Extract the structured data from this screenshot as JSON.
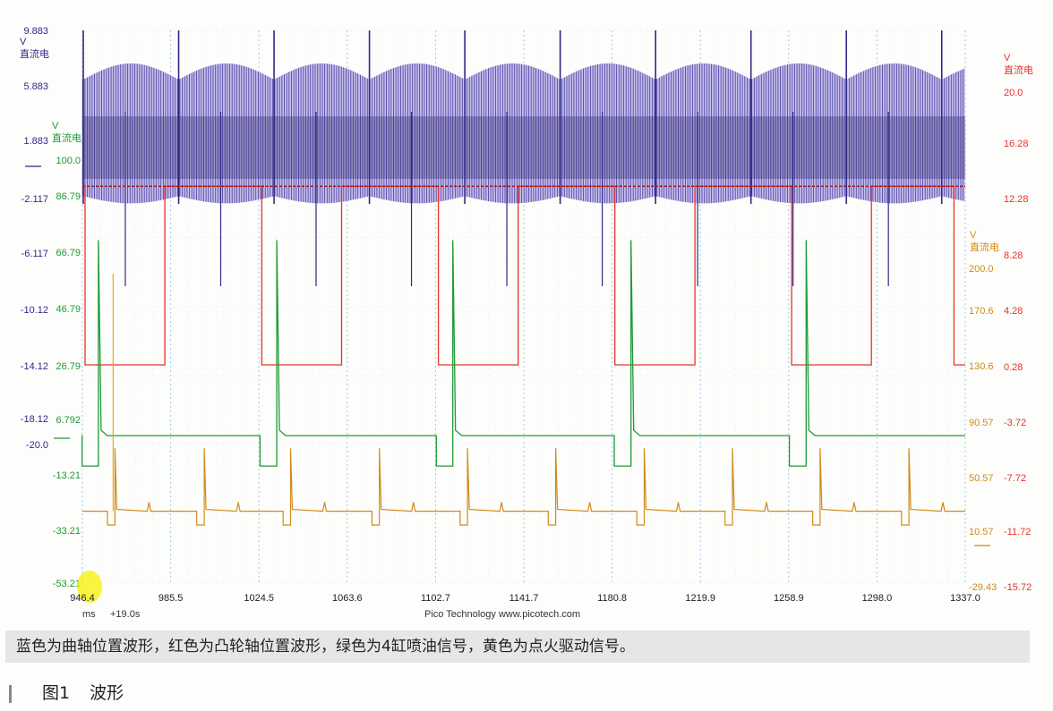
{
  "chart_data": {
    "type": "line",
    "x": {
      "unit": "ms",
      "offset_label": "+19.0s",
      "ticks": [
        "946.4",
        "985.5",
        "1024.5",
        "1063.6",
        "1102.7",
        "1141.7",
        "1180.8",
        "1219.9",
        "1258.9",
        "1298.0",
        "1337.0"
      ],
      "range": [
        946.4,
        1337.0
      ]
    },
    "footer": "Pico Technology  www.picotech.com",
    "axes": [
      {
        "id": "blue",
        "color": "#2e2a8c",
        "unit": "V",
        "unit_label": "直流电",
        "range": [
          -20.0,
          9.883
        ],
        "ticks": [
          "9.883",
          "5.883",
          "1.883",
          "-2.117",
          "-6.117",
          "-10.12",
          "-14.12",
          "-18.12",
          "-20.0"
        ]
      },
      {
        "id": "green",
        "color": "#1e9a35",
        "unit": "V",
        "unit_label": "直流电",
        "range": [
          -53.21,
          100.0
        ],
        "ticks": [
          "100.0",
          "86.79",
          "66.79",
          "46.79",
          "26.79",
          "6.792",
          "-13.21",
          "-33.21",
          "-53.21"
        ]
      },
      {
        "id": "orange",
        "color": "#d08a18",
        "unit": "V",
        "unit_label": "直流电",
        "range": [
          -29.43,
          200.0
        ],
        "ticks": [
          "200.0",
          "170.6",
          "130.6",
          "90.57",
          "50.57",
          "10.57",
          "-29.43"
        ]
      },
      {
        "id": "red",
        "color": "#e8322a",
        "unit": "V",
        "unit_label": "直流电",
        "range": [
          -15.72,
          23.8
        ],
        "ticks": [
          "20.0",
          "16.28",
          "12.28",
          "8.28",
          "4.28",
          "0.28",
          "-3.72",
          "-7.72",
          "-11.72",
          "-15.72"
        ]
      }
    ],
    "series": [
      {
        "axis": "blue",
        "kind": "crank",
        "period_ms": 42.2,
        "spike_times": [
          946.8,
          989.0,
          1031.2,
          1073.4,
          1115.6,
          1157.8,
          1200.0,
          1242.2,
          1284.4,
          1326.6
        ],
        "envelope": [
          -2.6,
          7.5
        ]
      },
      {
        "axis": "red",
        "kind": "cam",
        "high": 13.2,
        "low": 0.3,
        "fall_times": [
          947.6,
          1025.8,
          1103.9,
          1182.0,
          1260.2
        ],
        "rise_times": [
          982.9,
          1061.1,
          1139.2,
          1217.4,
          1295.5
        ],
        "extra_fall": 1332.0
      },
      {
        "axis": "green",
        "kind": "injector",
        "base": 0.2,
        "low": -10.8,
        "peak": 71.0,
        "pulse_start": [
          946.3,
          1025.0,
          1103.0,
          1181.7,
          1259.2
        ],
        "pulse_end": [
          953.5,
          1032.4,
          1110.3,
          1189.1,
          1266.6
        ]
      },
      {
        "axis": "orange",
        "kind": "ignition",
        "base": 24.5,
        "dip": 14.5,
        "spike_peak": 70.0,
        "dip_start": [
          957.5,
          997.0,
          1035.2,
          1074.5,
          1113.5,
          1152.5,
          1191.7,
          1230.7,
          1269.5,
          1308.8
        ],
        "dip_end": [
          960.8,
          1000.3,
          1038.5,
          1077.8,
          1116.8,
          1155.8,
          1195.0,
          1234.0,
          1272.8,
          1312.1
        ],
        "big_spike_peak": 196.0
      }
    ]
  },
  "caption": "蓝色为曲轴位置波形，红色为凸轮轴位置波形，绿色为4缸喷油信号，黄色为点火驱动信号。",
  "figure": {
    "number": "图1",
    "title": "波形"
  }
}
